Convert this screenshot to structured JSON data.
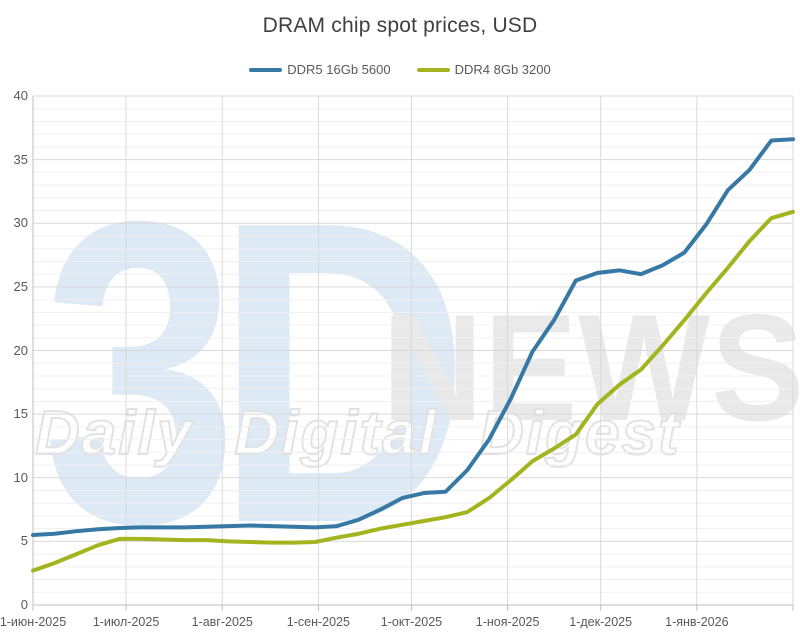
{
  "title": "DRAM chip spot prices, USD",
  "legend": [
    {
      "label": "DDR5 16Gb 5600",
      "color": "#3779a4"
    },
    {
      "label": "DDR4 8Gb 3200",
      "color": "#a3b41f"
    }
  ],
  "watermark": {
    "part1": "3D",
    "part2": "NEWS",
    "part3": "Daily Digital Digest"
  },
  "colors": {
    "axis": "#bfbfbf",
    "grid_major": "#d9d9d9",
    "grid_minor": "#f0f0f0",
    "grid_vertical": "#d9d9d9",
    "tick_text": "#595959",
    "title_text": "#404040"
  },
  "chart_data": {
    "type": "line",
    "title": "DRAM chip spot prices, USD",
    "xlabel": "",
    "ylabel": "",
    "ylim": [
      0,
      40
    ],
    "y_major_step": 5,
    "y_minor_step": 1,
    "y_tick_labels": [
      "0",
      "5",
      "10",
      "15",
      "20",
      "25",
      "30",
      "35",
      "40"
    ],
    "x_range_days": [
      0,
      245
    ],
    "x_tick_days": [
      0,
      30,
      61,
      92,
      122,
      153,
      183,
      214
    ],
    "x_gridline_days": [
      30,
      61,
      92,
      122,
      153,
      183,
      214,
      245
    ],
    "x_tick_labels": [
      "1-июн-2025",
      "1-июл-2025",
      "1-авг-2025",
      "1-сен-2025",
      "1-окт-2025",
      "1-ноя-2025",
      "1-дек-2025",
      "1-янв-2026"
    ],
    "grid": true,
    "legend_position": "top",
    "x_days": [
      0,
      7,
      14,
      21,
      28,
      35,
      42,
      49,
      56,
      63,
      70,
      77,
      84,
      91,
      98,
      105,
      112,
      119,
      126,
      133,
      140,
      147,
      154,
      161,
      168,
      175,
      182,
      189,
      196,
      203,
      210,
      217,
      224,
      231,
      238,
      245
    ],
    "series": [
      {
        "name": "DDR5 16Gb 5600",
        "color": "#3779a4",
        "values": [
          5.5,
          5.6,
          5.8,
          5.95,
          6.05,
          6.1,
          6.1,
          6.1,
          6.15,
          6.2,
          6.25,
          6.2,
          6.15,
          6.1,
          6.2,
          6.7,
          7.5,
          8.4,
          8.8,
          8.9,
          10.6,
          13.0,
          16.2,
          19.9,
          22.4,
          25.5,
          26.1,
          26.3,
          26.0,
          26.7,
          27.7,
          29.9,
          32.6,
          34.2,
          36.5,
          36.6
        ]
      },
      {
        "name": "DDR4 8Gb 3200",
        "color": "#a3b41f",
        "values": [
          2.7,
          3.3,
          4.0,
          4.7,
          5.2,
          5.2,
          5.15,
          5.1,
          5.1,
          5.0,
          4.95,
          4.9,
          4.9,
          4.95,
          5.3,
          5.6,
          6.0,
          6.3,
          6.6,
          6.9,
          7.3,
          8.4,
          9.8,
          11.3,
          12.3,
          13.4,
          15.8,
          17.3,
          18.5,
          20.4,
          22.4,
          24.5,
          26.5,
          28.6,
          30.4,
          30.9
        ]
      }
    ]
  }
}
